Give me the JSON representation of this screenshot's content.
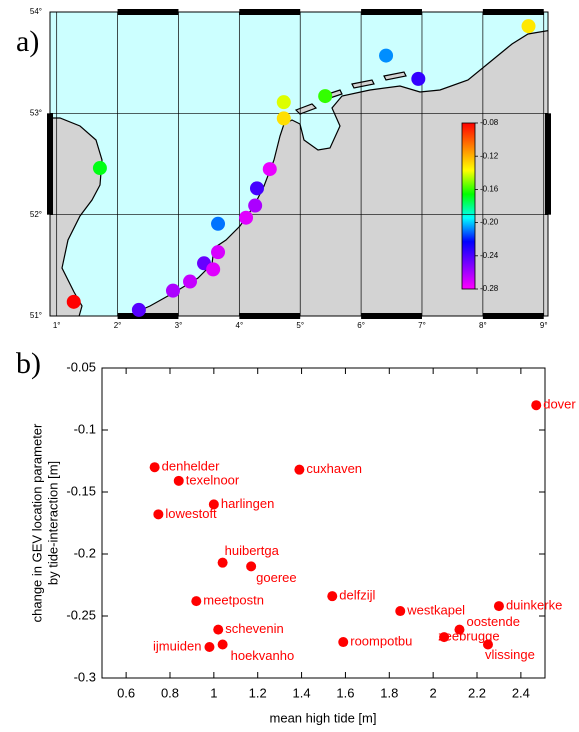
{
  "chart_data": [
    {
      "type": "map",
      "panel_label": "a)",
      "x": [
        1.28,
        1.71,
        2.35,
        2.91,
        3.19,
        3.42,
        3.57,
        3.65,
        3.65,
        4.11,
        4.26,
        4.29,
        4.5,
        4.73,
        4.73,
        5.41,
        6.41,
        6.94,
        8.75
      ],
      "y": [
        51.14,
        52.46,
        51.06,
        51.25,
        51.34,
        51.52,
        51.46,
        51.63,
        51.91,
        51.97,
        52.09,
        52.26,
        52.45,
        52.95,
        53.11,
        53.17,
        53.57,
        53.34,
        53.86
      ],
      "values": [
        -0.08,
        -0.168,
        -0.242,
        -0.261,
        -0.267,
        -0.246,
        -0.273,
        -0.271,
        -0.21,
        -0.273,
        -0.261,
        -0.238,
        -0.275,
        -0.13,
        -0.141,
        -0.16,
        -0.207,
        -0.234,
        -0.132
      ],
      "xlim": [
        0.89,
        9.07
      ],
      "ylim": [
        51,
        54
      ],
      "xticks": [
        {
          "value": 1,
          "label": "1°"
        },
        {
          "value": 2,
          "label": "2°"
        },
        {
          "value": 3,
          "label": "3°"
        },
        {
          "value": 4,
          "label": "4°"
        },
        {
          "value": 5,
          "label": "5°"
        },
        {
          "value": 6,
          "label": "6°"
        },
        {
          "value": 7,
          "label": "7°"
        },
        {
          "value": 8,
          "label": "8°"
        },
        {
          "value": 9,
          "label": "9°"
        }
      ],
      "yticks": [
        {
          "value": 51,
          "label": "51°"
        },
        {
          "value": 52,
          "label": "52°"
        },
        {
          "value": 53,
          "label": "53°"
        },
        {
          "value": 54,
          "label": "54°"
        }
      ],
      "grid": true,
      "colormap": [
        "#ff0000",
        "#ff8000",
        "#ffff00",
        "#00ff00",
        "#00ffff",
        "#0000ff",
        "#8000ff",
        "#ff00ff"
      ],
      "colorbar": {
        "lim": [
          -0.08,
          -0.28
        ],
        "ticks": [
          -0.08,
          -0.12,
          -0.16,
          {
            "value": -0.2,
            "label": "-0.20"
          },
          -0.24,
          -0.28
        ]
      }
    },
    {
      "type": "scatter",
      "panel_label": "b)",
      "xlabel": "mean high tide [m]",
      "ylabel": [
        "change in GEV location parameter",
        "by tide-interaction [m]"
      ],
      "point_labels": [
        "dover",
        "lowestoft",
        "duinkerke",
        "oostende",
        "zeebrugge",
        "westkapel",
        "vlissinge",
        "roompotbu",
        "goeree",
        "hoekvanho",
        "schevenin",
        "meetpostn",
        "ijmuiden",
        "denhelder",
        "texelnoor",
        "harlingen",
        "huibertga",
        "delfzijl",
        "cuxhaven"
      ],
      "x": [
        2.47,
        0.747,
        2.3,
        2.12,
        2.05,
        1.85,
        2.25,
        1.59,
        1.17,
        1.04,
        1.02,
        0.92,
        0.98,
        0.73,
        0.84,
        1.0,
        1.04,
        1.54,
        1.39
      ],
      "values": [
        -0.08,
        -0.168,
        -0.242,
        -0.261,
        -0.267,
        -0.246,
        -0.273,
        -0.271,
        -0.21,
        -0.273,
        -0.261,
        -0.238,
        -0.275,
        -0.13,
        -0.141,
        -0.16,
        -0.207,
        -0.234,
        -0.132
      ],
      "color": "#ff0000",
      "xlim": [
        0.49,
        2.51
      ],
      "ylim": [
        -0.3,
        -0.05
      ],
      "xticks": [
        0.6,
        0.8,
        1,
        1.2,
        1.4,
        1.6,
        1.8,
        2,
        2.2,
        2.4
      ],
      "yticks": [
        -0.3,
        -0.25,
        -0.2,
        -0.15,
        -0.1,
        -0.05
      ]
    }
  ]
}
